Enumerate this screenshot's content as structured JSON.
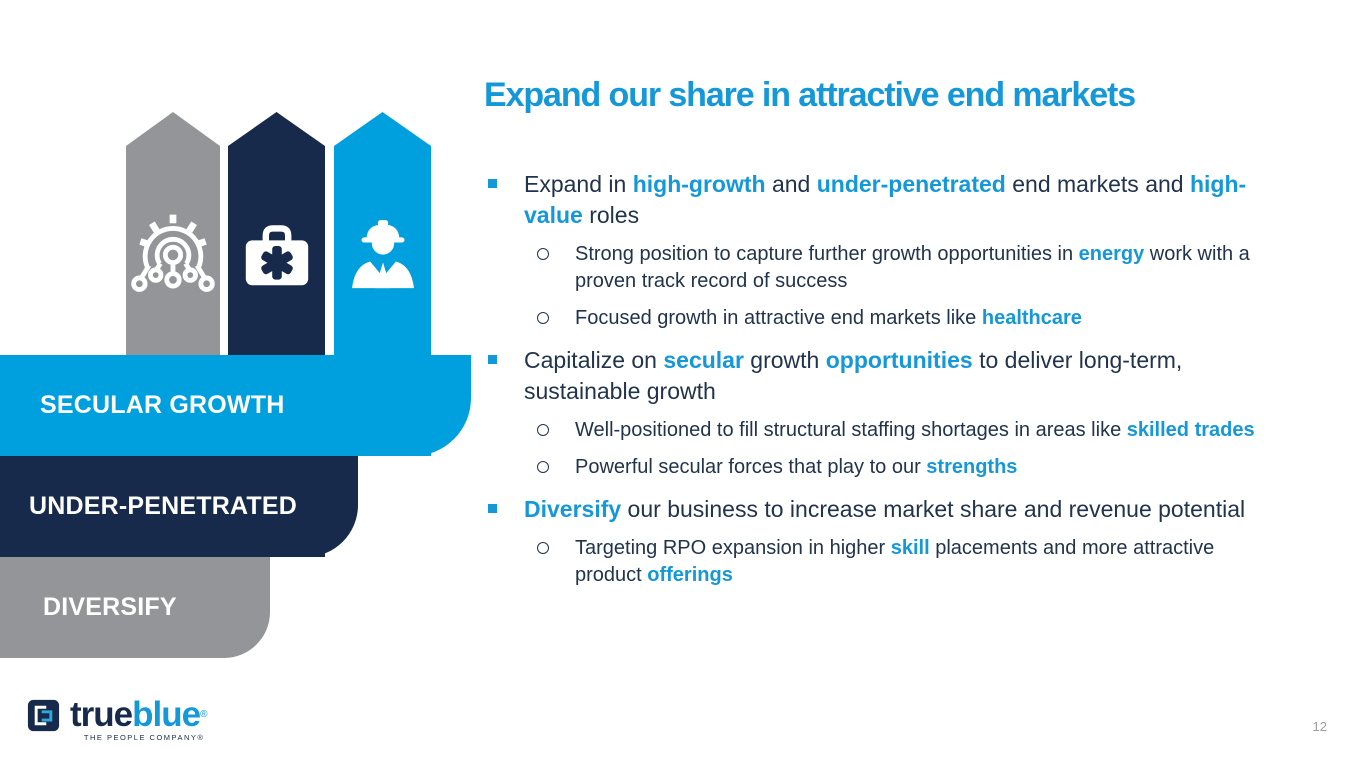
{
  "colors": {
    "accent_blue": "#1598D8",
    "banner_blue": "#009FDE",
    "navy": "#182A4B",
    "text_navy": "#22334C",
    "gray": "#939598",
    "page_gray": "#9B9B9B"
  },
  "slide": {
    "title": "Expand our share in attractive end markets",
    "page_number": "12"
  },
  "diagram": {
    "arrows": [
      {
        "icon": "gear-automation-icon",
        "color_key": "gray"
      },
      {
        "icon": "medical-briefcase-icon",
        "color_key": "navy"
      },
      {
        "icon": "construction-worker-icon",
        "color_key": "banner_blue"
      }
    ],
    "banners": [
      {
        "label": "SECULAR GROWTH",
        "color_key": "banner_blue"
      },
      {
        "label": "UNDER-PENETRATED",
        "color_key": "navy"
      },
      {
        "label": "DIVERSIFY",
        "color_key": "gray"
      }
    ]
  },
  "bullets": [
    {
      "level": 1,
      "segments": [
        {
          "t": "Expand in ",
          "h": false
        },
        {
          "t": "high-growth",
          "h": true
        },
        {
          "t": " and ",
          "h": false
        },
        {
          "t": "under-penetrated",
          "h": true
        },
        {
          "t": " end markets and ",
          "h": false
        },
        {
          "t": "high-value",
          "h": true
        },
        {
          "t": " roles",
          "h": false
        }
      ]
    },
    {
      "level": 2,
      "segments": [
        {
          "t": "Strong position to capture further growth opportunities in ",
          "h": false
        },
        {
          "t": "energy",
          "h": true
        },
        {
          "t": " work with a proven track record of success",
          "h": false
        }
      ]
    },
    {
      "level": 2,
      "segments": [
        {
          "t": "Focused growth in attractive end markets like ",
          "h": false
        },
        {
          "t": "healthcare",
          "h": true
        }
      ]
    },
    {
      "level": 1,
      "segments": [
        {
          "t": "Capitalize on ",
          "h": false
        },
        {
          "t": "secular",
          "h": true
        },
        {
          "t": " growth ",
          "h": false
        },
        {
          "t": "opportunities",
          "h": true
        },
        {
          "t": " to deliver long-term, sustainable growth",
          "h": false
        }
      ]
    },
    {
      "level": 2,
      "segments": [
        {
          "t": "Well-positioned to fill structural staffing shortages in areas like ",
          "h": false
        },
        {
          "t": "skilled trades",
          "h": true
        }
      ]
    },
    {
      "level": 2,
      "segments": [
        {
          "t": "Powerful secular forces that play to our ",
          "h": false
        },
        {
          "t": "strengths",
          "h": true
        }
      ]
    },
    {
      "level": 1,
      "segments": [
        {
          "t": "Diversify",
          "h": true
        },
        {
          "t": " our business to increase market share and revenue potential",
          "h": false
        }
      ]
    },
    {
      "level": 2,
      "segments": [
        {
          "t": "Targeting RPO expansion in higher ",
          "h": false
        },
        {
          "t": "skill",
          "h": true
        },
        {
          "t": " placements and more attractive product ",
          "h": false
        },
        {
          "t": "offerings",
          "h": true
        }
      ]
    }
  ],
  "logo": {
    "word_primary": "true",
    "word_secondary": "blue",
    "trademark": "®",
    "tagline": "THE PEOPLE COMPANY®"
  }
}
